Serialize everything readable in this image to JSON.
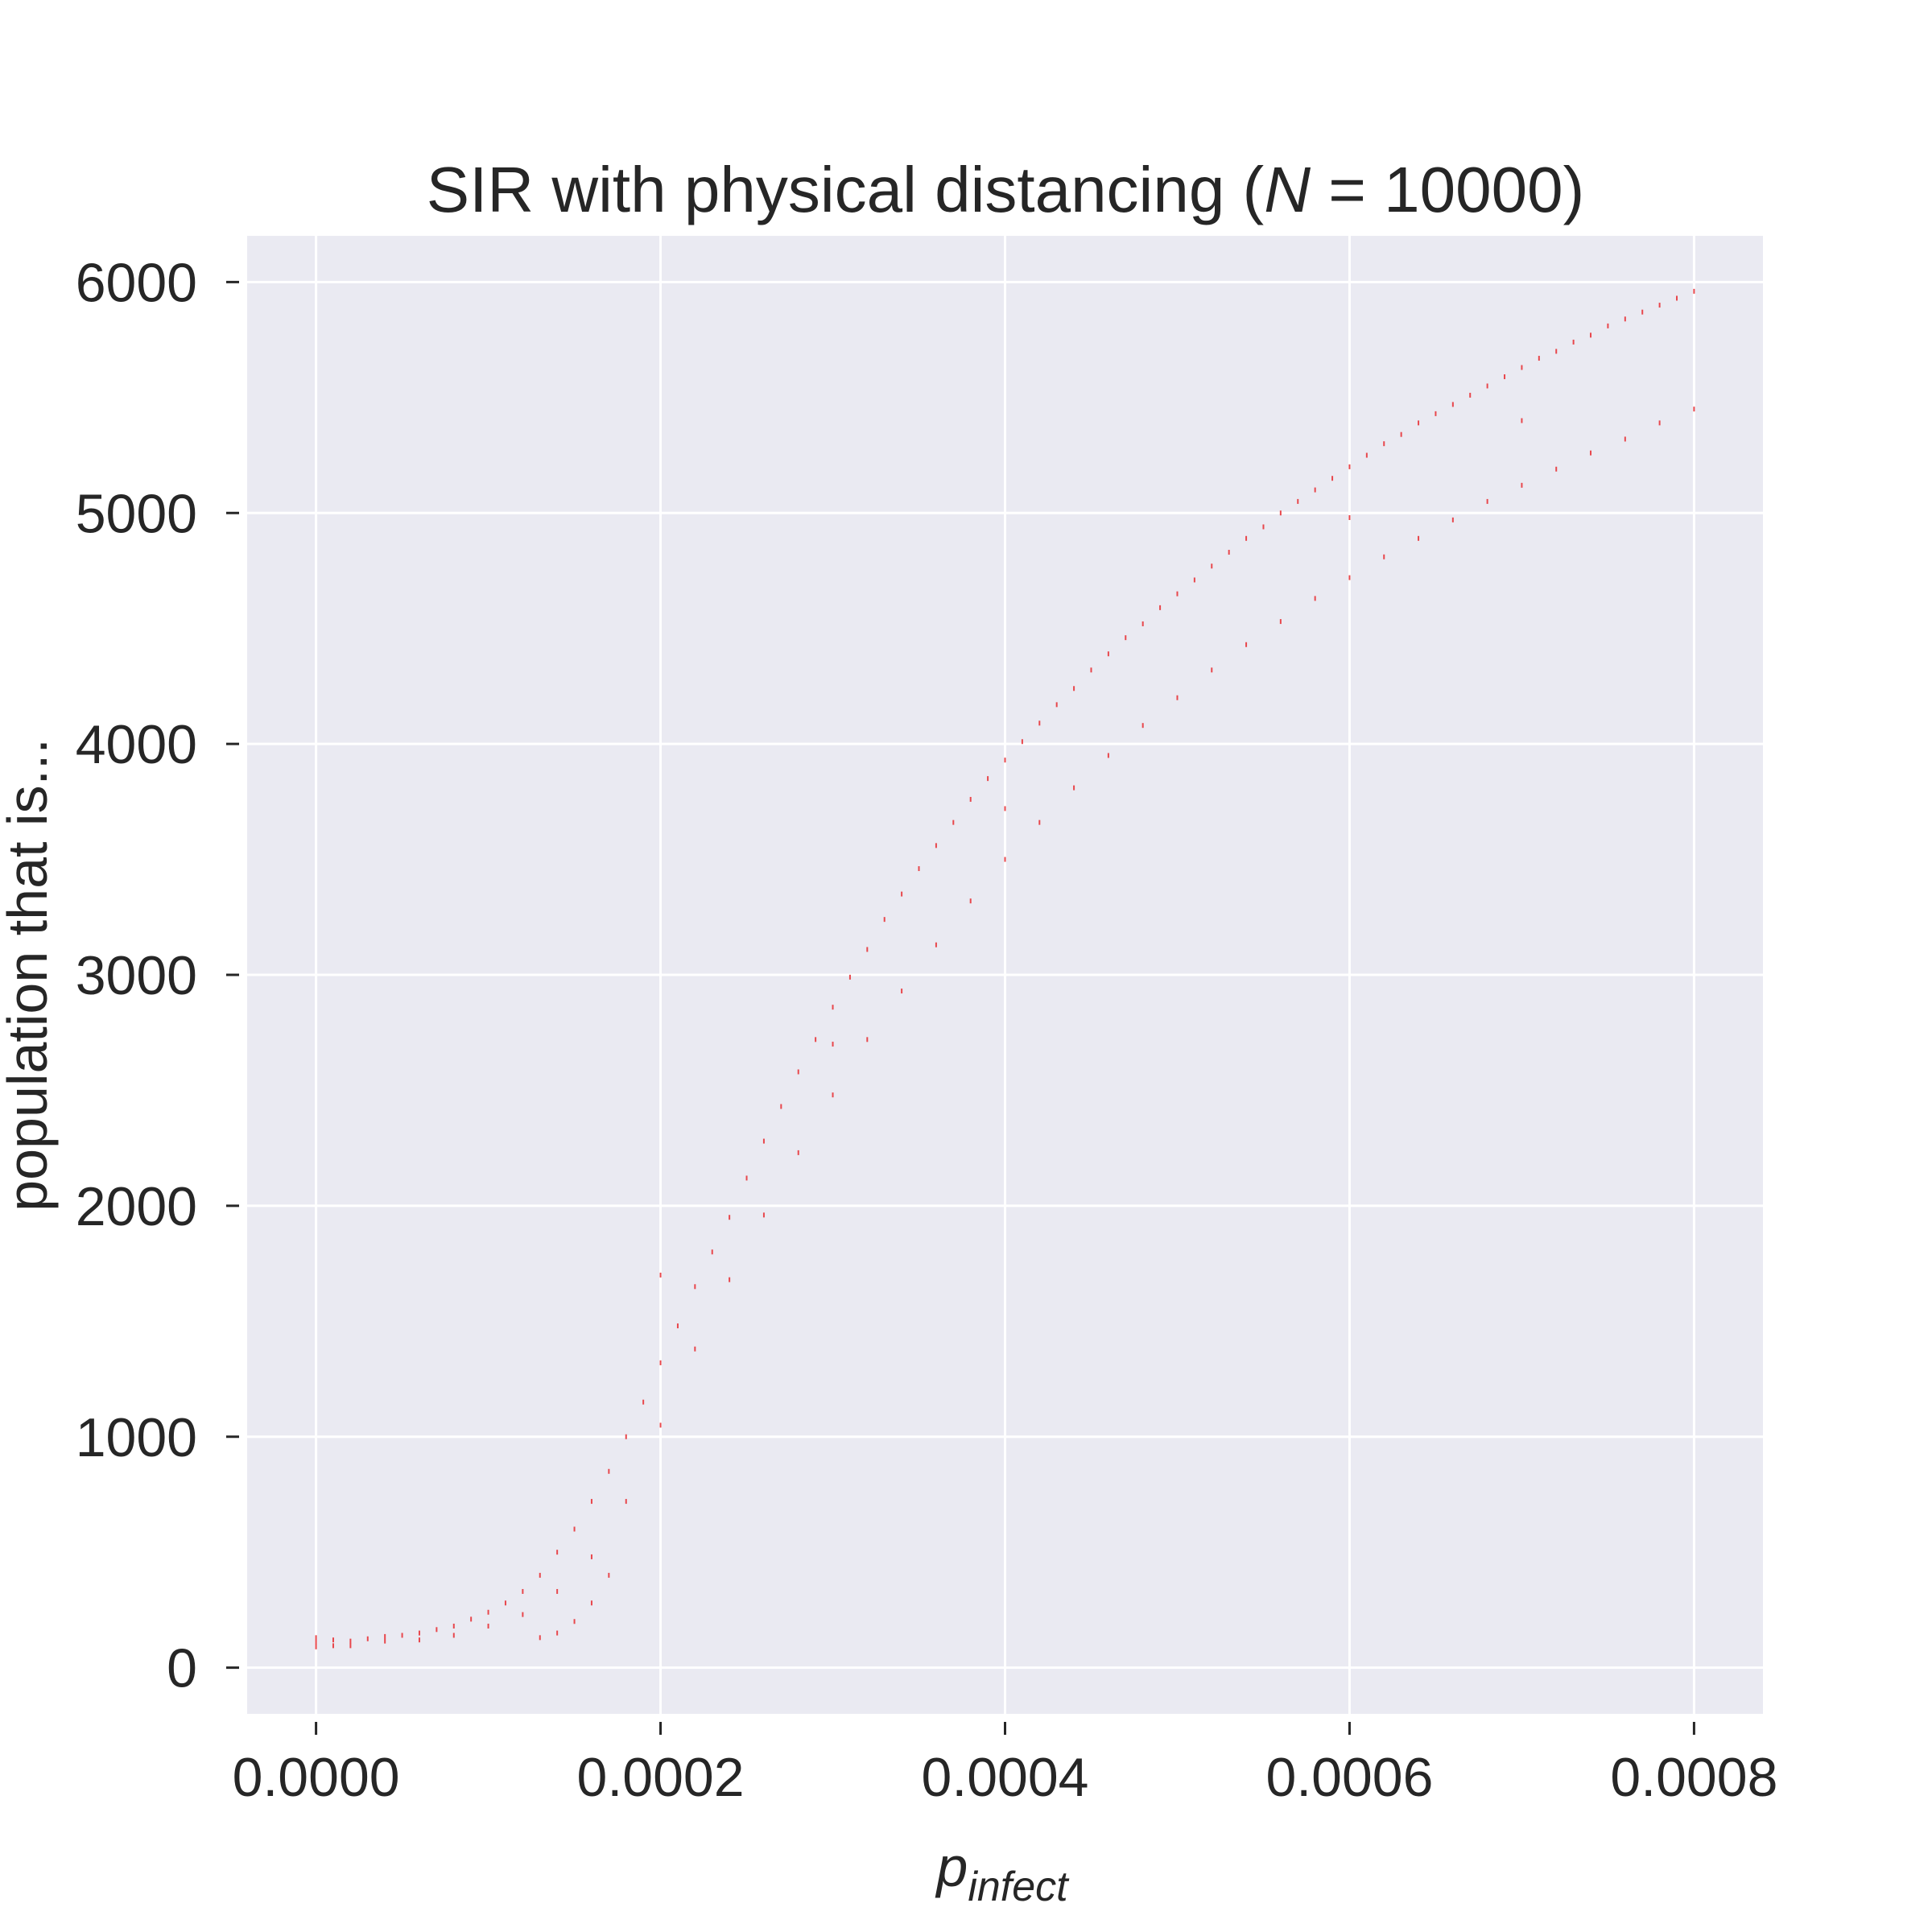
{
  "chart_data": {
    "type": "scatter",
    "title": "SIR with physical distancing (N = 10000)",
    "title_parts": {
      "prefix": "SIR with physical distancing (",
      "symbol": "N",
      "relation": " = 10000)"
    },
    "xlabel": "p_infect",
    "xlabel_parts": {
      "base": "p",
      "subscript": "infect"
    },
    "ylabel": "population that is...",
    "xlim": [
      -4e-05,
      0.00084
    ],
    "ylim": [
      -200,
      6200
    ],
    "xticks": [
      0,
      0.0002,
      0.0004,
      0.0006,
      0.0008
    ],
    "xtick_labels": [
      "0.0000",
      "0.0002",
      "0.0004",
      "0.0006",
      "0.0008"
    ],
    "yticks": [
      0,
      1000,
      2000,
      3000,
      4000,
      5000,
      6000
    ],
    "ytick_labels": [
      "0",
      "1000",
      "2000",
      "3000",
      "4000",
      "5000",
      "6000"
    ],
    "grid": true,
    "marker_color": "#e8474c",
    "background_color": "#eaeaf2",
    "series": [
      {
        "points": [
          [
            0.0,
            110
          ],
          [
            0.0,
            90
          ],
          [
            0.0,
            130
          ],
          [
            1e-05,
            120
          ],
          [
            1e-05,
            95
          ],
          [
            2e-05,
            115
          ],
          [
            3e-05,
            125
          ],
          [
            4e-05,
            135
          ],
          [
            5e-05,
            140
          ],
          [
            6e-05,
            150
          ],
          [
            7e-05,
            165
          ],
          [
            8e-05,
            180
          ],
          [
            9e-05,
            210
          ],
          [
            0.0001,
            240
          ],
          [
            0.00011,
            280
          ],
          [
            0.00012,
            330
          ],
          [
            0.00013,
            400
          ],
          [
            0.00014,
            500
          ],
          [
            0.00015,
            600
          ],
          [
            0.00016,
            720
          ],
          [
            0.00017,
            850
          ],
          [
            0.00018,
            1000
          ],
          [
            0.00019,
            1150
          ],
          [
            0.0002,
            1320
          ],
          [
            0.00021,
            1480
          ],
          [
            0.00022,
            1650
          ],
          [
            0.00023,
            1800
          ],
          [
            0.00024,
            1950
          ],
          [
            0.00025,
            2120
          ],
          [
            0.00026,
            2280
          ],
          [
            0.00027,
            2430
          ],
          [
            0.00028,
            2580
          ],
          [
            0.00029,
            2720
          ],
          [
            0.0003,
            2860
          ],
          [
            0.00031,
            2990
          ],
          [
            0.00032,
            3110
          ],
          [
            0.00033,
            3240
          ],
          [
            0.00034,
            3350
          ],
          [
            0.00035,
            3460
          ],
          [
            0.00036,
            3560
          ],
          [
            0.00037,
            3660
          ],
          [
            0.00038,
            3760
          ],
          [
            0.00039,
            3850
          ],
          [
            0.0004,
            3930
          ],
          [
            0.00041,
            4010
          ],
          [
            0.00042,
            4090
          ],
          [
            0.00043,
            4170
          ],
          [
            0.00044,
            4240
          ],
          [
            0.00045,
            4320
          ],
          [
            0.00046,
            4390
          ],
          [
            0.00047,
            4460
          ],
          [
            0.00048,
            4520
          ],
          [
            0.00049,
            4590
          ],
          [
            0.0005,
            4650
          ],
          [
            0.00051,
            4710
          ],
          [
            0.00052,
            4770
          ],
          [
            0.00053,
            4830
          ],
          [
            0.00054,
            4890
          ],
          [
            0.00055,
            4940
          ],
          [
            0.00056,
            5000
          ],
          [
            0.00057,
            5050
          ],
          [
            0.00058,
            5100
          ],
          [
            0.00059,
            5150
          ],
          [
            0.0006,
            5200
          ],
          [
            0.00061,
            5250
          ],
          [
            0.00062,
            5300
          ],
          [
            0.00063,
            5340
          ],
          [
            0.00064,
            5390
          ],
          [
            0.00065,
            5430
          ],
          [
            0.00066,
            5470
          ],
          [
            0.00067,
            5510
          ],
          [
            0.00068,
            5550
          ],
          [
            0.00069,
            5590
          ],
          [
            0.0007,
            5630
          ],
          [
            0.00071,
            5670
          ],
          [
            0.00072,
            5700
          ],
          [
            0.00073,
            5740
          ],
          [
            0.00074,
            5770
          ],
          [
            0.00075,
            5810
          ],
          [
            0.00076,
            5840
          ],
          [
            0.00077,
            5870
          ],
          [
            0.00078,
            5900
          ],
          [
            0.00079,
            5930
          ],
          [
            0.0008,
            5960
          ],
          [
            2e-05,
            95
          ],
          [
            4e-05,
            115
          ],
          [
            6e-05,
            120
          ],
          [
            8e-05,
            140
          ],
          [
            0.0001,
            180
          ],
          [
            0.00012,
            230
          ],
          [
            0.00014,
            330
          ],
          [
            0.00016,
            480
          ],
          [
            0.00018,
            720
          ],
          [
            0.0002,
            1050
          ],
          [
            0.00022,
            1380
          ],
          [
            0.00024,
            1680
          ],
          [
            0.00026,
            1960
          ],
          [
            0.00028,
            2230
          ],
          [
            0.0003,
            2480
          ],
          [
            0.00032,
            2720
          ],
          [
            0.00034,
            2930
          ],
          [
            0.00036,
            3130
          ],
          [
            0.00038,
            3320
          ],
          [
            0.0004,
            3500
          ],
          [
            0.00042,
            3660
          ],
          [
            0.00044,
            3810
          ],
          [
            0.00046,
            3950
          ],
          [
            0.00048,
            4080
          ],
          [
            0.0005,
            4200
          ],
          [
            0.00052,
            4320
          ],
          [
            0.00054,
            4430
          ],
          [
            0.00056,
            4530
          ],
          [
            0.00058,
            4630
          ],
          [
            0.0006,
            4720
          ],
          [
            0.00062,
            4810
          ],
          [
            0.00064,
            4890
          ],
          [
            0.00066,
            4970
          ],
          [
            0.00068,
            5050
          ],
          [
            0.0007,
            5120
          ],
          [
            0.00072,
            5190
          ],
          [
            0.00074,
            5260
          ],
          [
            0.00076,
            5320
          ],
          [
            0.00078,
            5390
          ],
          [
            0.0008,
            5450
          ],
          [
            0.00014,
            150
          ],
          [
            0.00015,
            200
          ],
          [
            0.00016,
            280
          ],
          [
            0.00017,
            400
          ],
          [
            0.00013,
            130
          ],
          [
            0.0006,
            4980
          ],
          [
            0.0007,
            5400
          ],
          [
            0.0004,
            3720
          ],
          [
            0.0003,
            2700
          ],
          [
            0.0002,
            1700
          ]
        ]
      }
    ]
  }
}
